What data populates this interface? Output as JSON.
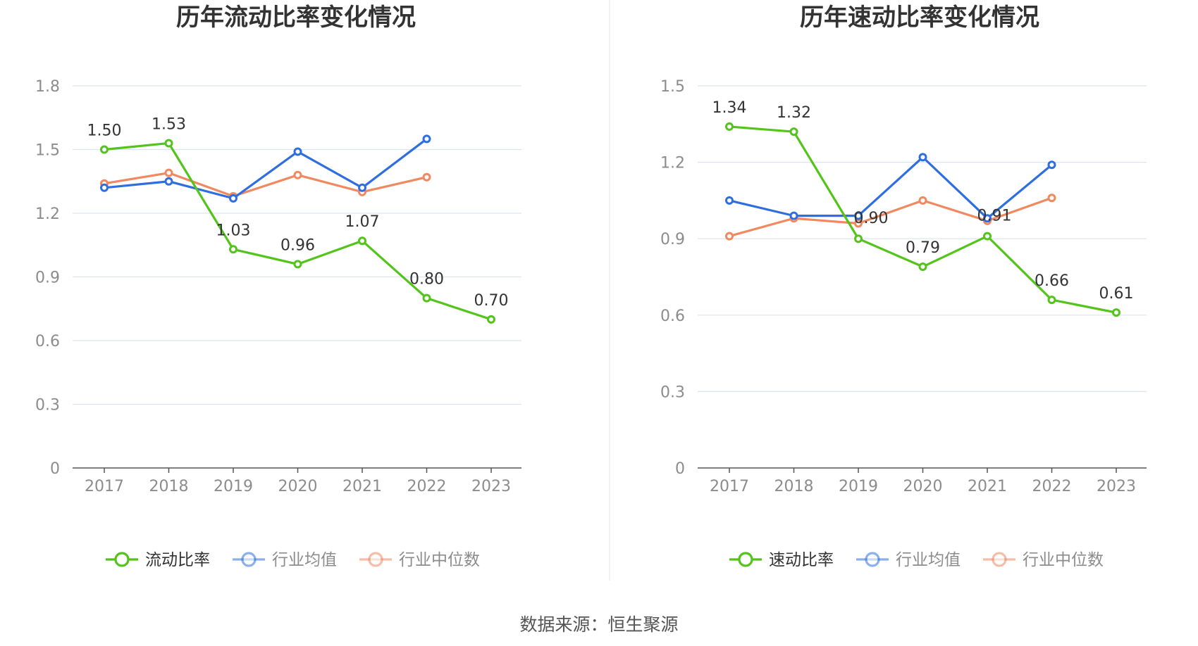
{
  "source_label": "数据来源：恒生聚源",
  "chart_data": [
    {
      "type": "line",
      "title": "历年流动比率变化情况",
      "x": [
        "2017",
        "2018",
        "2019",
        "2020",
        "2021",
        "2022",
        "2023"
      ],
      "ylim": [
        0,
        1.8
      ],
      "yticks": [
        "0",
        "0.3",
        "0.6",
        "0.9",
        "1.2",
        "1.5",
        "1.8"
      ],
      "grid": true,
      "legend_position": "bottom",
      "series": [
        {
          "name": "流动比率",
          "color": "#52c41a",
          "values": [
            1.5,
            1.53,
            1.03,
            0.96,
            1.07,
            0.8,
            0.7
          ],
          "labels": [
            "1.50",
            "1.53",
            "1.03",
            "0.96",
            "1.07",
            "0.80",
            "0.70"
          ]
        },
        {
          "name": "行业均值",
          "color": "#2f6ee0",
          "values": [
            1.32,
            1.35,
            1.27,
            1.49,
            1.32,
            1.55,
            null
          ]
        },
        {
          "name": "行业中位数",
          "color": "#f08860",
          "values": [
            1.34,
            1.39,
            1.28,
            1.38,
            1.3,
            1.37,
            null
          ]
        }
      ]
    },
    {
      "type": "line",
      "title": "历年速动比率变化情况",
      "x": [
        "2017",
        "2018",
        "2019",
        "2020",
        "2021",
        "2022",
        "2023"
      ],
      "ylim": [
        0,
        1.5
      ],
      "yticks": [
        "0",
        "0.3",
        "0.6",
        "0.9",
        "1.2",
        "1.5"
      ],
      "grid": true,
      "legend_position": "bottom",
      "series": [
        {
          "name": "速动比率",
          "color": "#52c41a",
          "values": [
            1.34,
            1.32,
            0.9,
            0.79,
            0.91,
            0.66,
            0.61
          ],
          "labels": [
            "1.34",
            "1.32",
            "0.90",
            "0.79",
            "0.91",
            "0.66",
            "0.61"
          ]
        },
        {
          "name": "行业均值",
          "color": "#2f6ee0",
          "values": [
            1.05,
            0.99,
            0.99,
            1.22,
            0.98,
            1.19,
            null
          ]
        },
        {
          "name": "行业中位数",
          "color": "#f08860",
          "values": [
            0.91,
            0.98,
            0.96,
            1.05,
            0.97,
            1.06,
            null
          ]
        }
      ]
    }
  ]
}
